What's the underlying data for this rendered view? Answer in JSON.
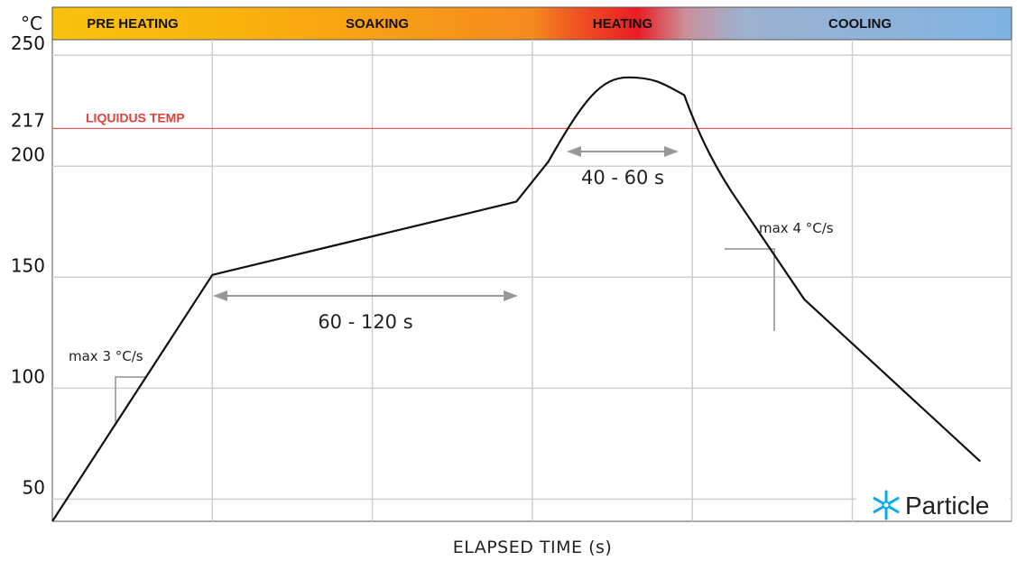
{
  "chart_data": {
    "type": "line",
    "title": "",
    "xlabel": "ELAPSED TIME (s)",
    "ylabel": "°C",
    "ylim": [
      40,
      257
    ],
    "yticks": [
      50,
      100,
      150,
      200,
      250
    ],
    "grid": true,
    "series": [
      {
        "values": [
          {
            "x": 0,
            "y": 40
          },
          {
            "x": 1,
            "y": 151
          },
          {
            "x": 2.9,
            "y": 184
          },
          {
            "x": 3.1,
            "y": 202
          },
          {
            "x": 3.6,
            "y": 240
          },
          {
            "x": 3.95,
            "y": 232
          },
          {
            "x": 4.25,
            "y": 188
          },
          {
            "x": 4.7,
            "y": 140
          },
          {
            "x": 5.8,
            "y": 67
          }
        ]
      }
    ],
    "phases": [
      {
        "label": "PRE HEATING",
        "color": "#f9b90b"
      },
      {
        "label": "SOAKING",
        "color": "#f58a1f"
      },
      {
        "label": "HEATING",
        "color": "#ec1c24"
      },
      {
        "label": "COOLING",
        "color": "#7fb3e3"
      }
    ],
    "reference_line": {
      "label": "LIQUIDUS TEMP",
      "tick_label": "217",
      "value": 217,
      "color": "#e0423a"
    },
    "annotations": {
      "soak_duration": "60 - 120 s",
      "reflow_duration": "40 - 60 s",
      "ramp_up_rate": "max 3 °C/s",
      "cool_down_rate": "max 4 °C/s"
    },
    "y_unit": "°C"
  },
  "logo": {
    "text": "Particle",
    "icon": "particle-star-icon",
    "color": "#00aeef"
  }
}
